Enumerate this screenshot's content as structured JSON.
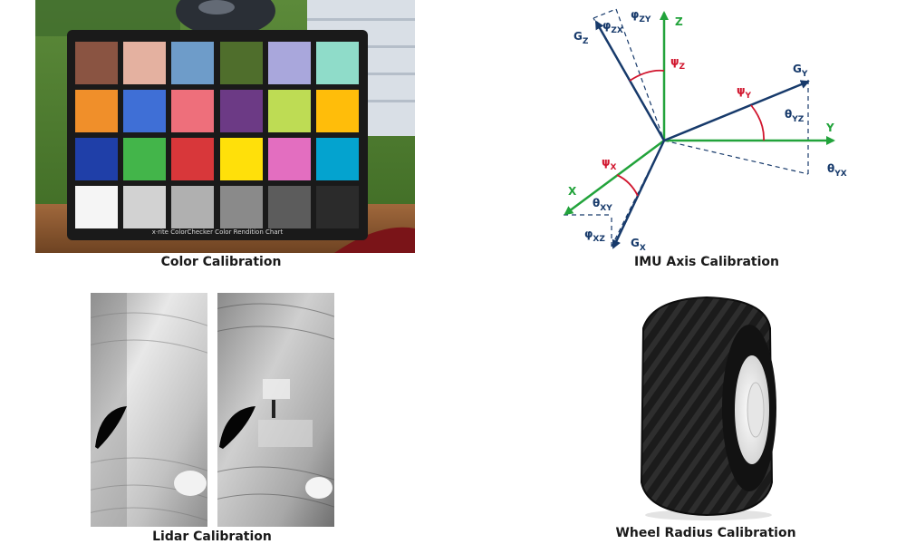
{
  "panels": {
    "color": {
      "caption": "Color Calibration",
      "chart_label": "x·rite ColorChecker Color Rendition Chart"
    },
    "imu": {
      "caption": "IMU Axis Calibration"
    },
    "lidar": {
      "caption": "Lidar Calibration"
    },
    "wheel": {
      "caption": "Wheel Radius Calibration"
    }
  },
  "color_patches": [
    "#8a5442",
    "#e4b1a0",
    "#6e9cc9",
    "#4f6e2c",
    "#a9a7dc",
    "#8fdcc9",
    "#f08f2a",
    "#3f6fd6",
    "#ee6f7b",
    "#6c3a85",
    "#bedc54",
    "#ffbd0a",
    "#1f3fa8",
    "#43b54a",
    "#d8373a",
    "#ffe00a",
    "#e36ec0",
    "#04a3cf",
    "#f5f5f5",
    "#d2d2d2",
    "#b0b0b0",
    "#8a8a8a",
    "#5c5c5c",
    "#2b2b2b"
  ],
  "imu_labels": {
    "z": "Z",
    "y": "Y",
    "x": "X",
    "gz": "G",
    "gz_sub": "Z",
    "gy": "G",
    "gy_sub": "Y",
    "gx": "G",
    "gx_sub": "X",
    "psi_z": "ψ",
    "psi_z_sub": "Z",
    "psi_y": "ψ",
    "psi_y_sub": "Y",
    "psi_x": "ψ",
    "psi_x_sub": "X",
    "phi_zx": "φ",
    "phi_zx_sub": "ZX",
    "phi_zy": "φ",
    "phi_zy_sub": "ZY",
    "phi_xz": "φ",
    "phi_xz_sub": "XZ",
    "theta_yz": "θ",
    "theta_yz_sub": "YZ",
    "theta_yx": "θ",
    "theta_yx_sub": "YX",
    "theta_xy": "θ",
    "theta_xy_sub": "XY"
  },
  "colors": {
    "axis_green": "#22a33b",
    "gyro_navy": "#173a6b",
    "angle_red": "#d1162e"
  }
}
